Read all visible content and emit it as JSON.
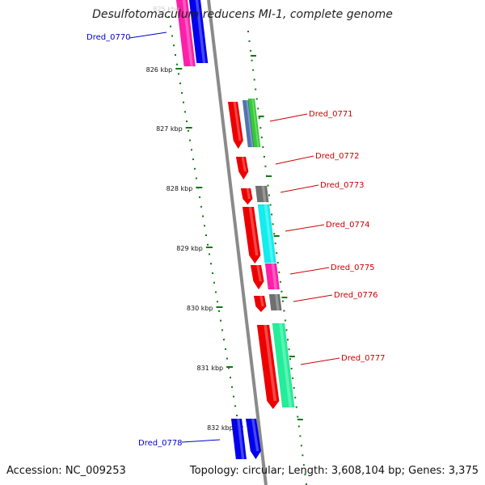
{
  "title": "Desulfotomaculum reducens MI-1, complete genome",
  "accession": "Accession: NC_009253",
  "summary": "Topology: circular; Length: 3,608,104 bp; Genes: 3,375",
  "ruler": {
    "faint_top_label": "825 kbp",
    "ticks": [
      "826 kbp",
      "827 kbp",
      "828 kbp",
      "829 kbp",
      "830 kbp",
      "831 kbp",
      "832 kbp"
    ]
  },
  "genes": [
    {
      "id": "Dred_0770",
      "color": "#0000cc"
    },
    {
      "id": "Dred_0771",
      "color": "#cc0000"
    },
    {
      "id": "Dred_0772",
      "color": "#cc0000"
    },
    {
      "id": "Dred_0773",
      "color": "#cc0000"
    },
    {
      "id": "Dred_0774",
      "color": "#cc0000"
    },
    {
      "id": "Dred_0775",
      "color": "#cc0000"
    },
    {
      "id": "Dred_0776",
      "color": "#cc0000"
    },
    {
      "id": "Dred_0777",
      "color": "#cc0000"
    },
    {
      "id": "Dred_0778",
      "color": "#0000cc"
    }
  ],
  "colors": {
    "backbone": "#8a8a8a",
    "tick": "#0a7a0a",
    "strand_forward": "#ee0000",
    "strand_reverse": "#0000ee",
    "magenta": "#ff1faa",
    "cyan": "#10eeee",
    "green": "#33cc33",
    "steelblue": "#4f74b0",
    "spring_green": "#22ee99",
    "gray": "#707070"
  }
}
